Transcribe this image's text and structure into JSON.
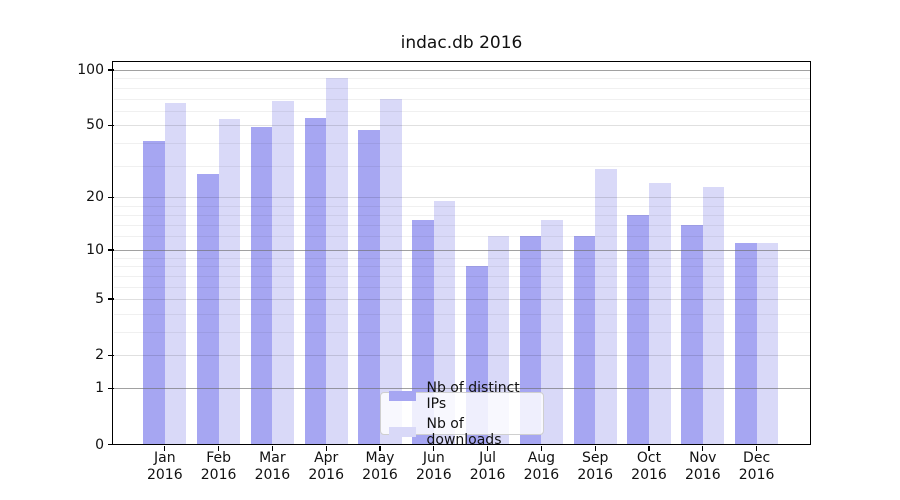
{
  "chart_data": {
    "type": "bar",
    "title": "indac.db 2016",
    "categories": [
      "Jan",
      "Feb",
      "Mar",
      "Apr",
      "May",
      "Jun",
      "Jul",
      "Aug",
      "Sep",
      "Oct",
      "Nov",
      "Dec"
    ],
    "year_label": "2016",
    "series": [
      {
        "name": "Nb of distinct IPs",
        "color": "#a6a6f2",
        "values": [
          41,
          27,
          49,
          55,
          47,
          15,
          8,
          12,
          12,
          16,
          14,
          11
        ]
      },
      {
        "name": "Nb of downloads",
        "color": "#d9d9f8",
        "values": [
          66,
          54,
          68,
          91,
          70,
          19,
          12,
          15,
          29,
          24,
          23,
          11
        ]
      }
    ],
    "xlabel": "",
    "ylabel": "",
    "yscale": "log(1+x)",
    "ylim": [
      0,
      110
    ],
    "yticks": [
      0,
      1,
      2,
      5,
      10,
      20,
      50,
      100
    ],
    "ytick_labels": [
      "0",
      "1",
      "2",
      "5",
      "10",
      "20",
      "50",
      "100"
    ],
    "minor_gridline_values": [
      3,
      4,
      6,
      7,
      8,
      9,
      12,
      14,
      16,
      18,
      30,
      40,
      60,
      70,
      80,
      90
    ],
    "grid": true,
    "legend_position": "inside-bottom-center",
    "colors": {
      "axis": "#000000",
      "major_gridline": "rgba(110,110,110,0.65)",
      "mid_gridline": "rgba(0,0,0,0.12)",
      "minor_gridline": "rgba(0,0,0,0.06)",
      "background": "#ffffff"
    }
  }
}
